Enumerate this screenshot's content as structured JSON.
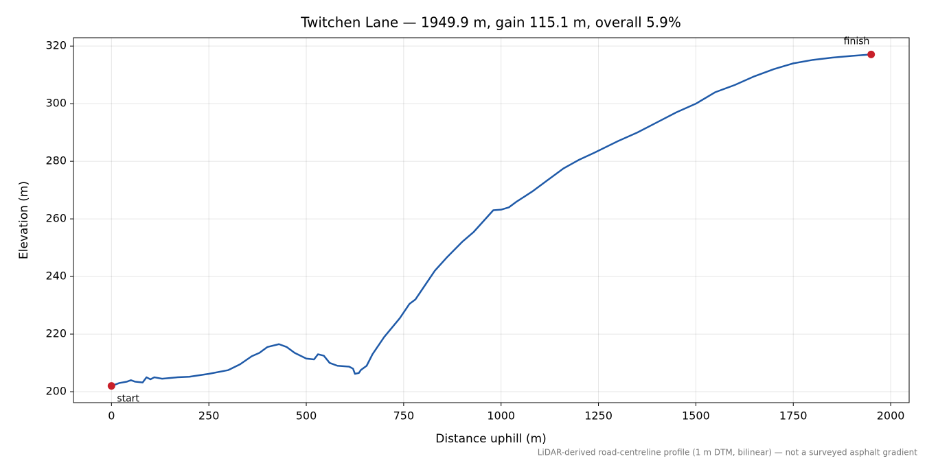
{
  "chart_data": {
    "type": "line",
    "title": "Twitchen Lane — 1949.9 m, gain 115.1 m, overall 5.9%",
    "xlabel": "Distance uphill (m)",
    "ylabel": "Elevation (m)",
    "footnote": "LiDAR-derived road-centreline profile (1 m DTM, bilinear) — not a surveyed asphalt gradient",
    "color": "#1f5aa8",
    "grid": true,
    "xlim": [
      -97.5,
      2047.4
    ],
    "ylim": [
      196.2,
      322.9
    ],
    "xticks": [
      0,
      250,
      500,
      750,
      1000,
      1250,
      1500,
      1750,
      2000
    ],
    "yticks": [
      200,
      220,
      240,
      260,
      280,
      300,
      320
    ],
    "x": [
      0,
      10,
      20,
      40,
      50,
      60,
      80,
      90,
      100,
      110,
      130,
      170,
      200,
      250,
      300,
      330,
      360,
      380,
      400,
      430,
      450,
      470,
      500,
      520,
      530,
      545,
      560,
      580,
      610,
      620,
      625,
      635,
      640,
      655,
      670,
      700,
      740,
      765,
      780,
      800,
      830,
      860,
      900,
      930,
      960,
      980,
      1000,
      1020,
      1040,
      1080,
      1120,
      1160,
      1180,
      1200,
      1240,
      1300,
      1350,
      1400,
      1450,
      1500,
      1550,
      1600,
      1650,
      1700,
      1750,
      1800,
      1850,
      1900,
      1949.9
    ],
    "values": [
      202,
      202.5,
      203,
      203.5,
      204,
      203.5,
      203.2,
      205,
      204.3,
      205,
      204.5,
      205,
      205.2,
      206.2,
      207.5,
      209.5,
      212.3,
      213.5,
      215.5,
      216.5,
      215.5,
      213.5,
      211.5,
      211.2,
      213,
      212.5,
      210,
      209,
      208.7,
      208,
      206.2,
      206.5,
      207.5,
      209,
      213,
      219,
      225.5,
      230.5,
      232,
      236,
      242,
      246.5,
      252,
      255.5,
      260,
      263,
      263.2,
      264,
      266,
      269.5,
      273.5,
      277.5,
      279,
      280.5,
      283,
      287,
      290,
      293.5,
      297,
      300,
      304,
      306.5,
      309.5,
      312,
      314,
      315.2,
      316,
      316.6,
      317.1
    ],
    "markers": [
      {
        "label": "start",
        "x": 0,
        "y": 202,
        "color": "#c8202a"
      },
      {
        "label": "finish",
        "x": 1949.9,
        "y": 317.1,
        "color": "#c8202a"
      }
    ]
  }
}
